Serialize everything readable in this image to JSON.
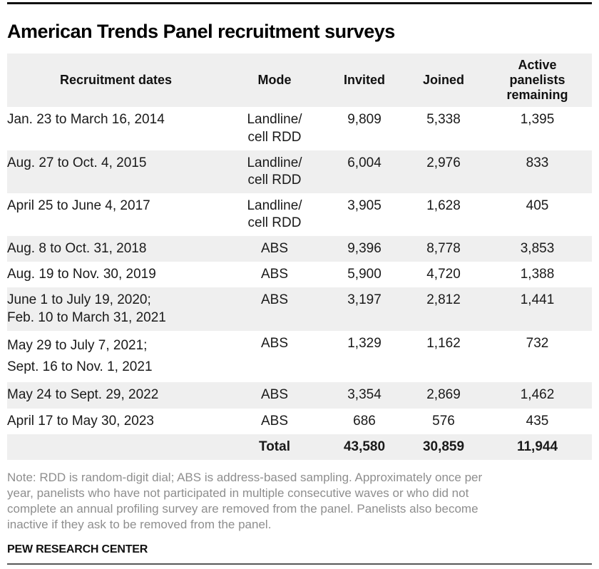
{
  "title": "American Trends Panel recruitment surveys",
  "chart_data": {
    "type": "table",
    "title": "American Trends Panel recruitment surveys",
    "columns": {
      "dates": "Recruitment dates",
      "mode": "Mode",
      "invited": "Invited",
      "joined": "Joined",
      "active": "Active\npanelists\nremaining"
    },
    "rows": [
      {
        "dates": "Jan. 23 to March 16, 2014",
        "mode": "Landline/\ncell RDD",
        "invited": "9,809",
        "joined": "5,338",
        "active": "1,395"
      },
      {
        "dates": "Aug. 27 to Oct. 4, 2015",
        "mode": "Landline/\ncell RDD",
        "invited": "6,004",
        "joined": "2,976",
        "active": "833"
      },
      {
        "dates": "April 25 to June 4, 2017",
        "mode": "Landline/\ncell RDD",
        "invited": "3,905",
        "joined": "1,628",
        "active": "405"
      },
      {
        "dates": "Aug. 8 to Oct. 31, 2018",
        "mode": "ABS",
        "invited": "9,396",
        "joined": "8,778",
        "active": "3,853"
      },
      {
        "dates": "Aug. 19 to Nov. 30, 2019",
        "mode": "ABS",
        "invited": "5,900",
        "joined": "4,720",
        "active": "1,388"
      },
      {
        "dates": "June 1 to July 19, 2020;\nFeb. 10 to March 31, 2021",
        "mode": "ABS",
        "invited": "3,197",
        "joined": "2,812",
        "active": "1,441"
      },
      {
        "dates": "May 29 to July 7, 2021;\nSept. 16 to Nov. 1, 2021",
        "mode": "ABS",
        "invited": "1,329",
        "joined": "1,162",
        "active": "732"
      },
      {
        "dates": "May 24 to Sept. 29, 2022",
        "mode": "ABS",
        "invited": "3,354",
        "joined": "2,869",
        "active": "1,462"
      },
      {
        "dates": "April 17 to May 30, 2023",
        "mode": "ABS",
        "invited": "686",
        "joined": "576",
        "active": "435"
      }
    ],
    "total": {
      "label": "Total",
      "invited": "43,580",
      "joined": "30,859",
      "active": "11,944"
    }
  },
  "footer": {
    "note": "Note: RDD is random-digit dial; ABS is address-based sampling. Approximately once per\nyear, panelists who have not participated in multiple consecutive waves or who did not\ncomplete an annual profiling survey are removed from the panel. Panelists also become\ninactive if they ask to be removed from the panel.",
    "source": "PEW RESEARCH CENTER"
  },
  "colors": {
    "stripe": "#efefef",
    "rule_top": "#111111",
    "rule_bottom": "#585858",
    "note_text": "#8e8e8e",
    "body_text": "#1a1a1a",
    "title_text": "#000000"
  }
}
